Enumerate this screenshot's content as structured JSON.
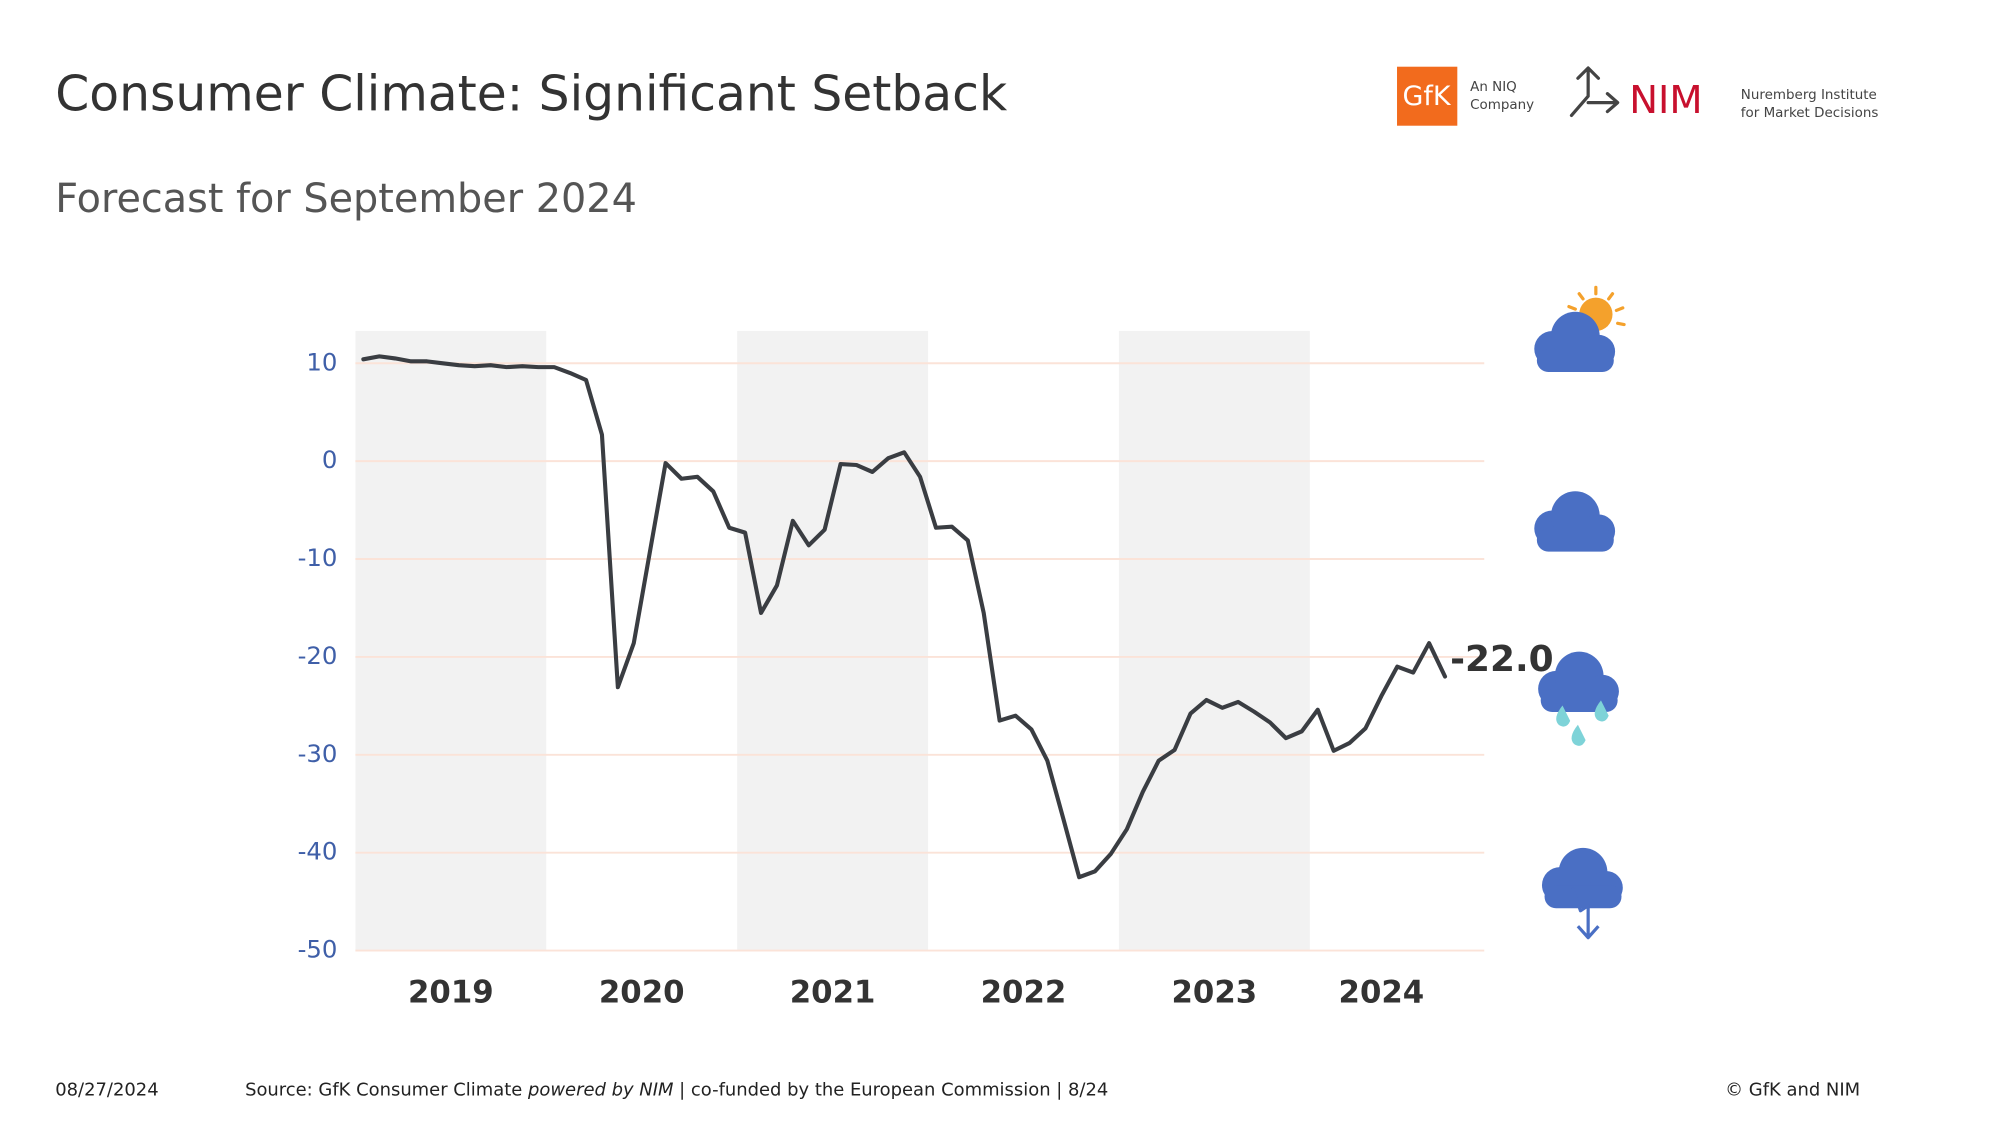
{
  "header": {
    "title": "Consumer Climate: Significant Setback",
    "subtitle": "Forecast for September 2024",
    "logo_gfk": "GfK",
    "logo_gfk_tagline": [
      "An NIQ",
      "Company"
    ],
    "logo_nim": "NIM",
    "logo_nim_tagline": [
      "Nuremberg Institute",
      "for Market Decisions"
    ]
  },
  "chart_data": {
    "type": "line",
    "color": "#3a3d42",
    "categories": [
      null,
      null,
      null,
      null,
      null,
      null,
      "2019",
      null,
      null,
      null,
      null,
      null,
      null,
      null,
      null,
      null,
      null,
      null,
      "2020",
      null,
      null,
      null,
      null,
      null,
      null,
      null,
      null,
      null,
      null,
      null,
      "2021",
      null,
      null,
      null,
      null,
      null,
      null,
      null,
      null,
      null,
      null,
      null,
      "2022",
      null,
      null,
      null,
      null,
      null,
      null,
      null,
      null,
      null,
      null,
      null,
      "2023",
      null,
      null,
      null,
      null,
      null,
      null,
      null,
      null,
      null,
      "2024",
      null,
      null,
      null,
      null
    ],
    "values": [
      10.4,
      10.7,
      10.5,
      10.2,
      10.2,
      10.0,
      9.8,
      9.7,
      9.8,
      9.6,
      9.7,
      9.6,
      9.6,
      9.0,
      8.3,
      2.7,
      -23.1,
      -18.6,
      -9.4,
      -0.2,
      -1.8,
      -1.6,
      -3.1,
      -6.8,
      -7.3,
      -15.5,
      -12.7,
      -6.1,
      -8.6,
      -7.0,
      -0.3,
      -0.4,
      -1.1,
      0.3,
      0.9,
      -1.6,
      -6.8,
      -6.7,
      -8.1,
      -15.5,
      -26.5,
      -26.0,
      -27.4,
      -30.6,
      -36.5,
      -42.5,
      -41.9,
      -40.1,
      -37.6,
      -33.8,
      -30.6,
      -29.5,
      -25.8,
      -24.4,
      -25.2,
      -24.6,
      -25.6,
      -26.7,
      -28.3,
      -27.6,
      -25.4,
      -29.6,
      -28.8,
      -27.3,
      -24.0,
      -21.0,
      -21.6,
      -18.6,
      -22.0
    ],
    "value_labels": [
      null,
      null,
      null,
      null,
      null,
      null,
      null,
      null,
      null,
      null,
      null,
      null,
      null,
      null,
      null,
      null,
      null,
      null,
      null,
      null,
      null,
      null,
      null,
      null,
      null,
      null,
      null,
      null,
      null,
      null,
      null,
      null,
      null,
      null,
      null,
      null,
      null,
      null,
      null,
      null,
      null,
      null,
      null,
      null,
      null,
      null,
      null,
      null,
      null,
      null,
      null,
      null,
      null,
      null,
      null,
      null,
      null,
      null,
      null,
      null,
      null,
      null,
      null,
      null,
      null,
      null,
      null,
      null,
      "-22.0"
    ],
    "ylim": [
      -50,
      13.3
    ],
    "yticks": [
      -50,
      -40,
      -30,
      -20,
      -10,
      0,
      10
    ],
    "grid": true
  },
  "footer": {
    "date": "08/27/2024",
    "source": [
      "Source: GfK Consumer Climate",
      "powered by NIM",
      "| co-funded by the European Commission | 8/24"
    ],
    "copyright": "© GfK and NIM"
  }
}
